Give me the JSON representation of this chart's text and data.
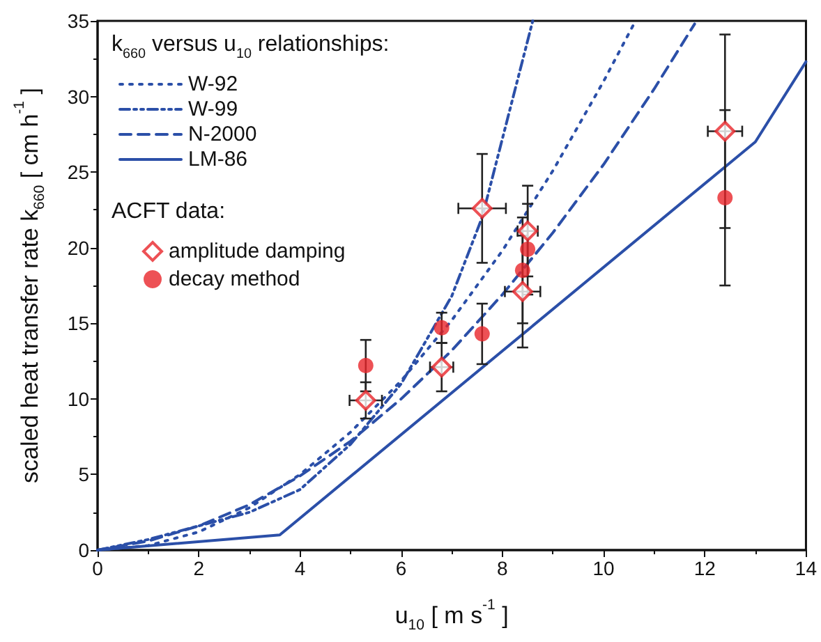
{
  "chart_data": {
    "type": "line",
    "xlabel": "u$_{10}$ [ m s$^{-1}$ ]",
    "ylabel": "scaled heat transfer rate k$_{660}$ [ cm h$^{-1}$ ]",
    "legend_title": "k$_{660}$ versus u$_{10}$ relationships:",
    "annotations": [
      "ACFT data:"
    ],
    "xlim": [
      0,
      14
    ],
    "xticks": [
      0,
      2,
      4,
      6,
      8,
      10,
      12,
      14
    ],
    "ylim": [
      0,
      35
    ],
    "yticks": [
      0,
      5,
      10,
      15,
      20,
      25,
      30,
      35
    ],
    "grid": false,
    "legend": "top left",
    "series": [
      {
        "name": "W-92",
        "line_style": "dotted",
        "marker": "none",
        "color": "#2b4fa8",
        "x": [
          0,
          1,
          2,
          3,
          4,
          5,
          6,
          7,
          8,
          9,
          10,
          10.6
        ],
        "values": [
          0,
          0.3,
          1.2,
          2.8,
          5.0,
          7.8,
          11.2,
          15.2,
          19.8,
          25.1,
          31.0,
          34.8
        ]
      },
      {
        "name": "W-99",
        "line_style": "dashdot",
        "marker": "none",
        "color": "#2b4fa8",
        "x": [
          0,
          1,
          2,
          3,
          4,
          5,
          6,
          7,
          7.6,
          8.6
        ],
        "values": [
          0,
          0.7,
          1.6,
          2.5,
          4.0,
          7.0,
          11.0,
          16.8,
          22.0,
          35.0
        ]
      },
      {
        "name": "N-2000",
        "line_style": "dashed",
        "marker": "none",
        "color": "#2b4fa8",
        "x": [
          0,
          1,
          2,
          3,
          4,
          5,
          6,
          7,
          8,
          9,
          10,
          11,
          11.8
        ],
        "values": [
          0,
          0.6,
          1.6,
          3.0,
          4.9,
          7.2,
          10.0,
          13.2,
          16.9,
          21.0,
          25.5,
          30.5,
          34.8
        ]
      },
      {
        "name": "LM-86",
        "line_style": "solid",
        "marker": "none",
        "color": "#2b4fa8",
        "x": [
          0,
          3.6,
          13,
          14
        ],
        "values": [
          0,
          1.0,
          27.0,
          32.3
        ]
      },
      {
        "name": "amplitude damping",
        "type": "scatter",
        "marker": "diamond",
        "color": "#e8262a",
        "x": [
          5.3,
          6.8,
          7.6,
          8.4,
          8.5,
          12.4
        ],
        "values": [
          9.9,
          12.1,
          22.6,
          17.1,
          21.1,
          27.7
        ],
        "errors": [
          1.2,
          1.6,
          3.6,
          3.7,
          3.0,
          6.4
        ],
        "xerrors": [
          0.32,
          0.23,
          0.47,
          0.35,
          0.2,
          0.34
        ]
      },
      {
        "name": "decay method",
        "type": "scatter",
        "marker": "circle",
        "color": "#e8262a",
        "x": [
          5.3,
          6.8,
          7.6,
          8.4,
          8.5,
          12.4
        ],
        "values": [
          12.2,
          14.7,
          14.3,
          18.5,
          19.9,
          23.3
        ],
        "errors": [
          1.7,
          1.0,
          2.0,
          3.5,
          3.0,
          5.8
        ]
      }
    ]
  }
}
